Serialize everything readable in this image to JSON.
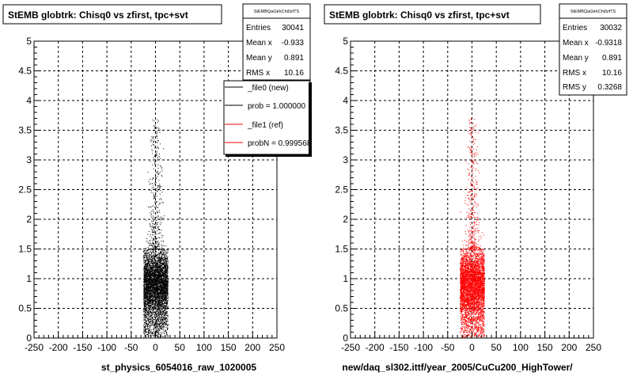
{
  "chart_data": [
    {
      "type": "scatter",
      "title": "StEMB globtrk: Chisq0 vs zfirst, tpc+svt",
      "xlabel": "st_physics_6054016_raw_1020005",
      "ylabel": "",
      "xlim": [
        -250,
        250
      ],
      "ylim": [
        0,
        5
      ],
      "x_ticks": [
        "-250",
        "-200",
        "-150",
        "-100",
        "-50",
        "0",
        "50",
        "100",
        "150",
        "200",
        "250"
      ],
      "y_ticks": [
        "0",
        "0.5",
        "1",
        "1.5",
        "2",
        "2.5",
        "3",
        "3.5",
        "4",
        "4.5",
        "5"
      ],
      "grid": true,
      "point_color": "#000000",
      "density": {
        "x_core": [
          -25,
          25
        ],
        "x_tail": [
          -15,
          15
        ],
        "y_dense": [
          0.05,
          1.5
        ],
        "y_max": 3.7
      },
      "stats": {
        "name": "StEMBQaGtrkChi0zfTS",
        "rows": [
          {
            "label": "Entries",
            "value": "30041"
          },
          {
            "label": "Mean x",
            "value": "-0.933"
          },
          {
            "label": "Mean y",
            "value": "0.891"
          },
          {
            "label": "RMS x",
            "value": "10.16"
          }
        ]
      },
      "legend": {
        "position": "top-right",
        "entries": [
          {
            "label": "_file0 (new)",
            "color": "#000000"
          },
          {
            "label": "prob = 1.000000",
            "color": "#000000"
          },
          {
            "label": "_file1 (ref)",
            "color": "#ff0000"
          },
          {
            "label": "probN = 0.999568",
            "color": "#ff0000"
          }
        ]
      }
    },
    {
      "type": "scatter",
      "title": "StEMB globtrk: Chisq0 vs zfirst, tpc+svt",
      "xlabel": "new/daq_sl302.ittf/year_2005/CuCu200_HighTower/",
      "ylabel": "",
      "xlim": [
        -250,
        250
      ],
      "ylim": [
        0,
        5
      ],
      "x_ticks": [
        "-250",
        "-200",
        "-150",
        "-100",
        "-50",
        "0",
        "50",
        "100",
        "150",
        "200",
        "250"
      ],
      "y_ticks": [
        "0",
        "0.5",
        "1",
        "1.5",
        "2",
        "2.5",
        "3",
        "3.5",
        "4",
        "4.5",
        "5"
      ],
      "grid": true,
      "point_color": "#ff0000",
      "density": {
        "x_core": [
          -25,
          25
        ],
        "x_tail": [
          -15,
          15
        ],
        "y_dense": [
          0.05,
          1.5
        ],
        "y_max": 3.7
      },
      "stats": {
        "name": "StEMBQaGtrkChi0zfTS",
        "rows": [
          {
            "label": "Entries",
            "value": "30032"
          },
          {
            "label": "Mean x",
            "value": "-0.9318"
          },
          {
            "label": "Mean y",
            "value": "0.891"
          },
          {
            "label": "RMS x",
            "value": "10.16"
          },
          {
            "label": "RMS y",
            "value": "0.3268"
          }
        ]
      }
    }
  ]
}
